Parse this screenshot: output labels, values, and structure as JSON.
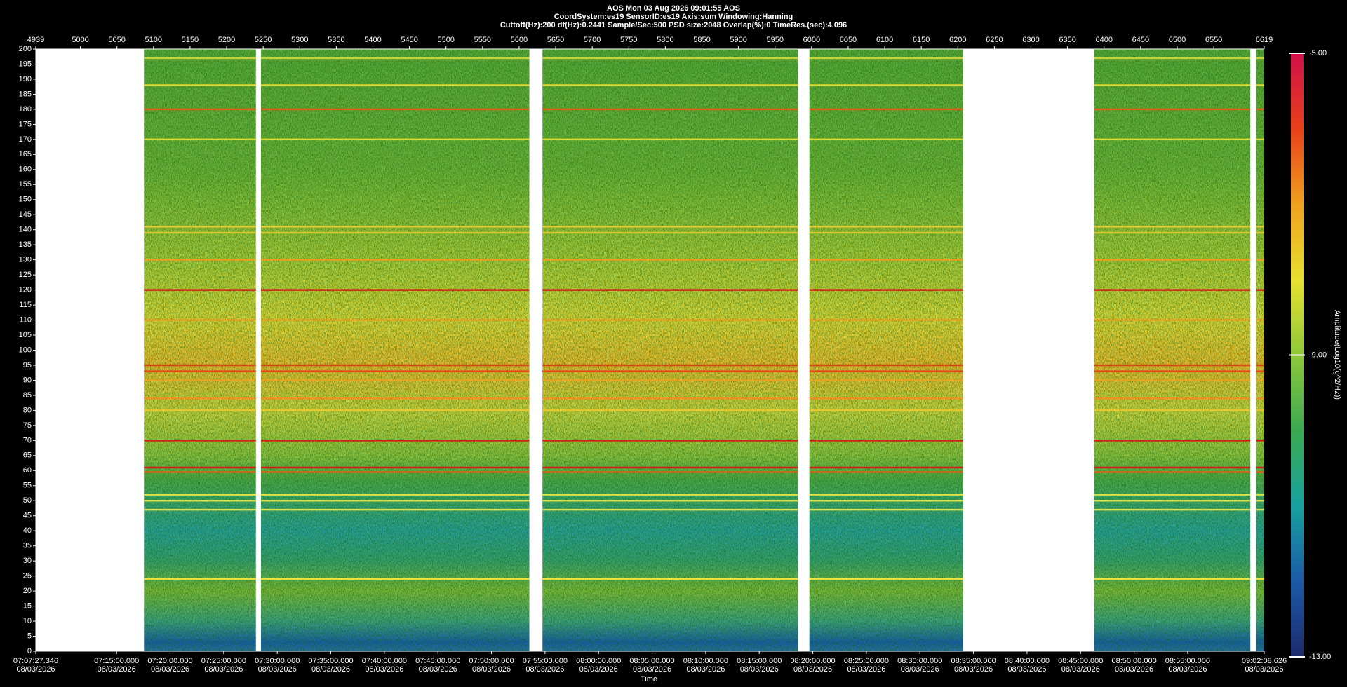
{
  "chart_data": {
    "type": "spectrogram",
    "title": [
      "AOS  Mon 03 Aug 2026 09:01:55  AOS",
      "CoordSystem:es19   SensorID:es19    Axis:sum    Windowing:Hanning",
      "Cuttoff(Hz):200      df(Hz):0.2441      Sample/Sec:500      PSD size:2048      Overlap(%):0      TimeRes.(sec):4.096"
    ],
    "x_label": "Time",
    "xlim": [
      4939,
      6619
    ],
    "xticks": [
      4939,
      5000,
      5050,
      5100,
      5150,
      5200,
      5250,
      5300,
      5350,
      5400,
      5450,
      5500,
      5550,
      5600,
      5650,
      5700,
      5750,
      5800,
      5850,
      5900,
      5950,
      6000,
      6050,
      6100,
      6150,
      6200,
      6250,
      6300,
      6350,
      6400,
      6450,
      6500,
      6550,
      6619
    ],
    "time_ticks": [
      {
        "value": 4939,
        "label": [
          "07:07:27.346",
          "08/03/2026"
        ]
      },
      {
        "value": 5049.51,
        "label": [
          "07:15:00.000",
          "08/03/2026"
        ]
      },
      {
        "value": 5122.75,
        "label": [
          "07:20:00.000",
          "08/03/2026"
        ]
      },
      {
        "value": 5195.99,
        "label": [
          "07:25:00.000",
          "08/03/2026"
        ]
      },
      {
        "value": 5269.24,
        "label": [
          "07:30:00.000",
          "08/03/2026"
        ]
      },
      {
        "value": 5342.48,
        "label": [
          "07:35:00.000",
          "08/03/2026"
        ]
      },
      {
        "value": 5415.72,
        "label": [
          "07:40:00.000",
          "08/03/2026"
        ]
      },
      {
        "value": 5488.96,
        "label": [
          "07:45:00.000",
          "08/03/2026"
        ]
      },
      {
        "value": 5562.2,
        "label": [
          "07:50:00.000",
          "08/03/2026"
        ]
      },
      {
        "value": 5635.45,
        "label": [
          "07:55:00.000",
          "08/03/2026"
        ]
      },
      {
        "value": 5708.69,
        "label": [
          "08:00:00.000",
          "08/03/2026"
        ]
      },
      {
        "value": 5781.93,
        "label": [
          "08:05:00.000",
          "08/03/2026"
        ]
      },
      {
        "value": 5855.17,
        "label": [
          "08:10:00.000",
          "08/03/2026"
        ]
      },
      {
        "value": 5928.41,
        "label": [
          "08:15:00.000",
          "08/03/2026"
        ]
      },
      {
        "value": 6001.66,
        "label": [
          "08:20:00.000",
          "08/03/2026"
        ]
      },
      {
        "value": 6074.9,
        "label": [
          "08:25:00.000",
          "08/03/2026"
        ]
      },
      {
        "value": 6148.14,
        "label": [
          "08:30:00.000",
          "08/03/2026"
        ]
      },
      {
        "value": 6221.38,
        "label": [
          "08:35:00.000",
          "08/03/2026"
        ]
      },
      {
        "value": 6294.63,
        "label": [
          "08:40:00.000",
          "08/03/2026"
        ]
      },
      {
        "value": 6367.87,
        "label": [
          "08:45:00.000",
          "08/03/2026"
        ]
      },
      {
        "value": 6441.11,
        "label": [
          "08:50:00.000",
          "08/03/2026"
        ]
      },
      {
        "value": 6514.35,
        "label": [
          "08:55:00.000",
          "08/03/2026"
        ]
      },
      {
        "value": 6619,
        "label": [
          "09:02:08.626",
          "08/03/2026"
        ]
      }
    ],
    "ylim": [
      0,
      200
    ],
    "yticks": [
      0,
      5,
      10,
      15,
      20,
      25,
      30,
      35,
      40,
      45,
      50,
      55,
      60,
      65,
      70,
      75,
      80,
      85,
      90,
      95,
      100,
      105,
      110,
      115,
      120,
      125,
      130,
      135,
      140,
      145,
      150,
      155,
      160,
      165,
      170,
      175,
      180,
      185,
      190,
      195,
      200
    ],
    "segments": [
      [
        5087,
        5240
      ],
      [
        5247,
        5614
      ],
      [
        5632,
        5981
      ],
      [
        5997,
        6207
      ],
      [
        6386,
        6600
      ],
      [
        6608,
        6619
      ]
    ],
    "tonal_lines": [
      {
        "value": 197,
        "color": "#c8d23a"
      },
      {
        "value": 188,
        "color": "#d6d83a"
      },
      {
        "value": 180,
        "color": "#e85a1a"
      },
      {
        "value": 170,
        "color": "#e0dc30"
      },
      {
        "value": 141,
        "color": "#e0c830"
      },
      {
        "value": 139,
        "color": "#d8c830"
      },
      {
        "value": 130,
        "color": "#f09a20"
      },
      {
        "value": 120,
        "color": "#d81818"
      },
      {
        "value": 110,
        "color": "#ec9a20"
      },
      {
        "value": 95,
        "color": "#e04018"
      },
      {
        "value": 93,
        "color": "#e84a18"
      },
      {
        "value": 90,
        "color": "#f0a020"
      },
      {
        "value": 84,
        "color": "#f09020"
      },
      {
        "value": 80,
        "color": "#e8c830"
      },
      {
        "value": 70,
        "color": "#d81818"
      },
      {
        "value": 61,
        "color": "#d81818"
      },
      {
        "value": 59.5,
        "color": "#e85a1a"
      },
      {
        "value": 52,
        "color": "#e0e040"
      },
      {
        "value": 50,
        "color": "#e8e040"
      },
      {
        "value": 47,
        "color": "#e8e040"
      },
      {
        "value": 24,
        "color": "#ece03a"
      }
    ],
    "colorbar": {
      "label": "Amplitude(Log10(g^2/Hz))",
      "clim": [
        -13,
        -5
      ],
      "ticks": [
        {
          "value": -5,
          "label": "-5.00"
        },
        {
          "value": -9,
          "label": "-9.00"
        },
        {
          "value": -13,
          "label": "-13.00"
        }
      ],
      "colormap": [
        "#1c2a6e",
        "#1a5aa8",
        "#18a0a0",
        "#3aaa50",
        "#8cc83a",
        "#e8e030",
        "#f0a020",
        "#e8401a",
        "#d0104a"
      ]
    }
  }
}
